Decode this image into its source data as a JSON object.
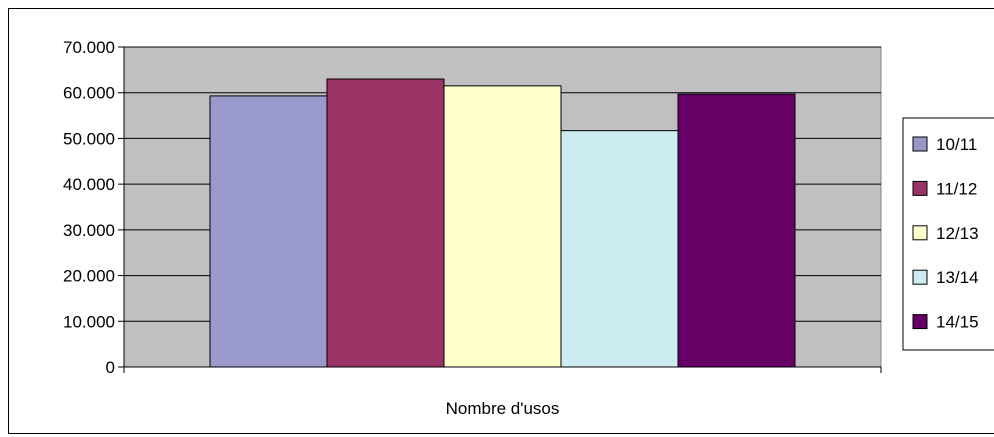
{
  "chart_data": {
    "type": "bar",
    "categories": [
      "Nombre d'usos"
    ],
    "xlabel": "Nombre d'usos",
    "ylim": [
      0,
      70000
    ],
    "yticks": [
      0,
      10000,
      20000,
      30000,
      40000,
      50000,
      60000,
      70000
    ],
    "ytick_labels": [
      "0",
      "10.000",
      "20.000",
      "30.000",
      "40.000",
      "50.000",
      "60.000",
      "70.000"
    ],
    "grid": true,
    "legend_position": "right",
    "plot_background": "#c0c0c0",
    "series": [
      {
        "name": "10/11",
        "values": [
          59300
        ],
        "color": "#9999cc"
      },
      {
        "name": "11/12",
        "values": [
          63000
        ],
        "color": "#993366"
      },
      {
        "name": "12/13",
        "values": [
          61500
        ],
        "color": "#ffffcc"
      },
      {
        "name": "13/14",
        "values": [
          51700
        ],
        "color": "#ccecf2"
      },
      {
        "name": "14/15",
        "values": [
          59700
        ],
        "color": "#660066"
      }
    ]
  }
}
